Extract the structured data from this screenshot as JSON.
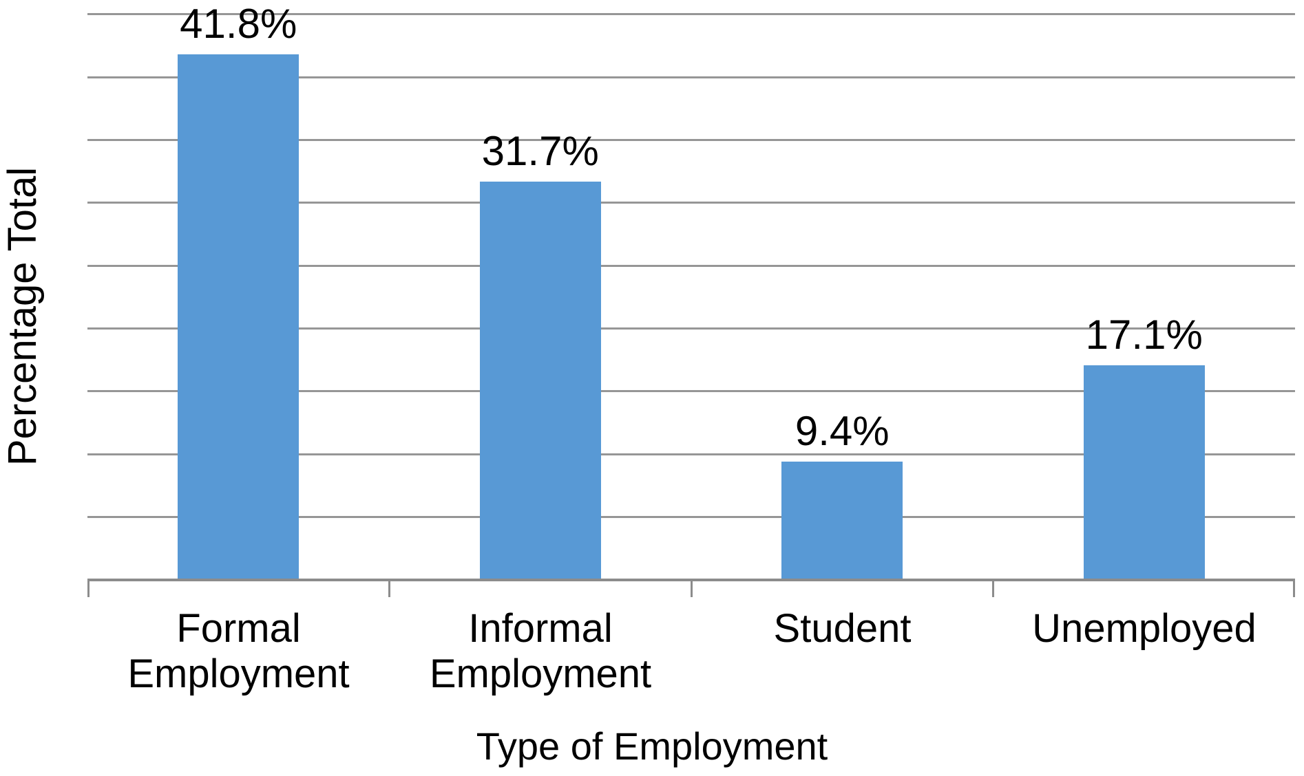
{
  "chart_data": {
    "type": "bar",
    "categories": [
      "Formal Employment",
      "Informal Employment",
      "Student",
      "Unemployed"
    ],
    "values": [
      41.8,
      31.7,
      9.4,
      17.1
    ],
    "value_labels": [
      "41.8%",
      "31.7%",
      "9.4%",
      "17.1%"
    ],
    "title": "",
    "xlabel": "Type of Employment",
    "ylabel": "Percentage Total",
    "ylim": [
      0,
      45
    ],
    "gridline_step": 5,
    "y_tick_labels_shown": false,
    "grid": "horizontal",
    "legend_position": "none",
    "bar_color": "#5899D5",
    "gridline_color": "#969696",
    "axis_color": "#8C8C8C",
    "text_color": "#000000"
  }
}
